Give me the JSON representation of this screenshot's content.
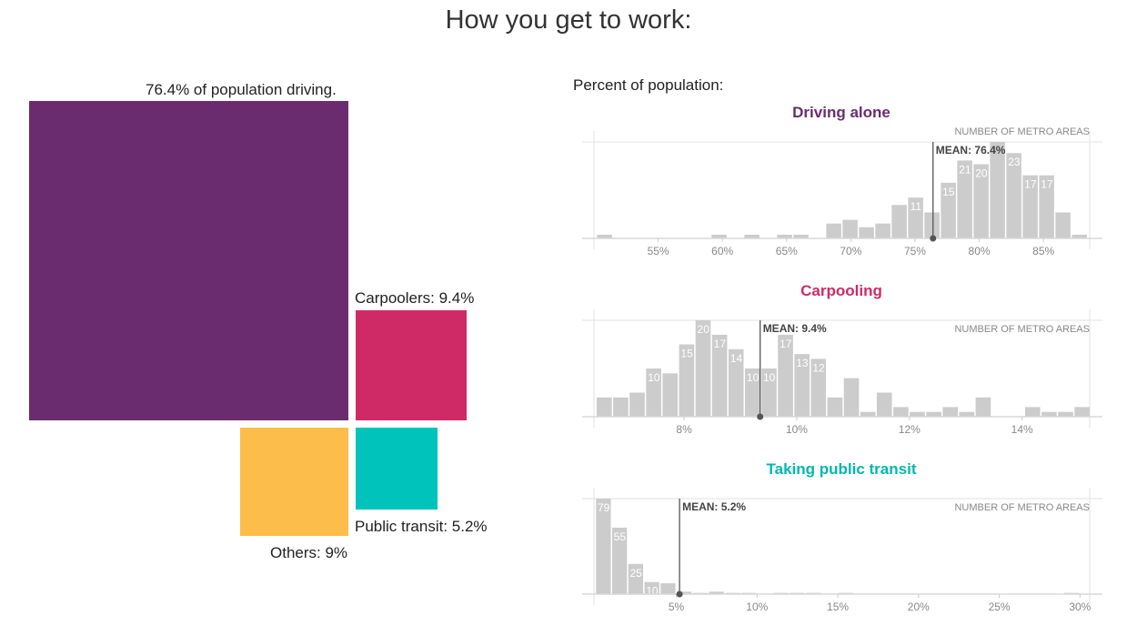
{
  "title": "How you get to work:",
  "squares": [
    {
      "label": "76.4% of population driving.",
      "value": 76.4,
      "color": "#6b2c6f"
    },
    {
      "label": "Carpoolers: 9.4%",
      "value": 9.4,
      "color": "#d02a66"
    },
    {
      "label": "Public transit: 5.2%",
      "value": 5.2,
      "color": "#00c4bb"
    },
    {
      "label": "Others: 9%",
      "value": 9,
      "color": "#fcbd4a"
    }
  ],
  "right_heading": "Percent of population:",
  "chart_data": [
    {
      "type": "bar",
      "title": "Driving alone",
      "title_color": "#6b2c6f",
      "ylabel": "NUMBER OF METRO AREAS",
      "mean_label": "MEAN: 76.4%",
      "mean": 76.4,
      "xlim": [
        50,
        88.6
      ],
      "ymax": 26,
      "ticks": [
        "55%",
        "60%",
        "65%",
        "70%",
        "75%",
        "80%",
        "85%"
      ],
      "tick_values": [
        55,
        60,
        65,
        70,
        75,
        80,
        85
      ],
      "bin_start": 50.2,
      "bin_width": 1.275,
      "counts": [
        1,
        0,
        0,
        0,
        0,
        0,
        0,
        1,
        0,
        1,
        0,
        1,
        1,
        0,
        4,
        5,
        3,
        4,
        9,
        11,
        7,
        15,
        21,
        20,
        26,
        23,
        17,
        17,
        7,
        1
      ],
      "labeled_bins": [
        19,
        21,
        22,
        23,
        25,
        26,
        27
      ],
      "bar_color": "#cccccc"
    },
    {
      "type": "bar",
      "title": "Carpooling",
      "title_color": "#d02a66",
      "ylabel": "NUMBER OF METRO AREAS",
      "mean_label": "MEAN: 9.4%",
      "mean": 9.35,
      "xlim": [
        6.4,
        15.2
      ],
      "ymax": 20,
      "ticks": [
        "8%",
        "10%",
        "12%",
        "14%"
      ],
      "tick_values": [
        8,
        10,
        12,
        14
      ],
      "bin_start": 6.44,
      "bin_width": 0.2925,
      "counts": [
        4,
        4,
        5,
        10,
        9,
        15,
        20,
        17,
        14,
        10,
        10,
        17,
        13,
        12,
        4,
        8,
        1,
        5,
        2,
        1,
        1,
        2,
        1,
        4,
        0,
        0,
        2,
        1,
        1,
        2
      ],
      "labeled_bins": [
        3,
        5,
        6,
        7,
        8,
        9,
        10,
        11,
        12,
        13
      ],
      "bar_color": "#cccccc"
    },
    {
      "type": "bar",
      "title": "Taking public transit",
      "title_color": "#00b8b0",
      "ylabel": "NUMBER OF METRO AREAS",
      "mean_label": "MEAN: 5.2%",
      "mean": 5.2,
      "xlim": [
        -0.1,
        30.6
      ],
      "ymax": 79,
      "ticks": [
        "5%",
        "10%",
        "15%",
        "20%",
        "25%",
        "30%"
      ],
      "tick_values": [
        5,
        10,
        15,
        20,
        25,
        30
      ],
      "bin_start": 0,
      "bin_width": 1,
      "counts": [
        79,
        55,
        25,
        10,
        9,
        2,
        1,
        2,
        1,
        1,
        0,
        1,
        1,
        1,
        0,
        1,
        0,
        0,
        0,
        0,
        0,
        0,
        0,
        0,
        0,
        0,
        0,
        0,
        0,
        1
      ],
      "labeled_bins": [
        0,
        1,
        2,
        3
      ],
      "bar_color": "#cccccc"
    }
  ]
}
